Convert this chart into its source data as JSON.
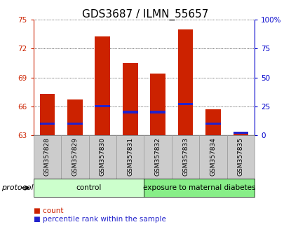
{
  "title": "GDS3687 / ILMN_55657",
  "samples": [
    "GSM357828",
    "GSM357829",
    "GSM357830",
    "GSM357831",
    "GSM357832",
    "GSM357833",
    "GSM357834",
    "GSM357835"
  ],
  "count_values": [
    67.3,
    66.7,
    73.3,
    70.5,
    69.4,
    74.0,
    65.7,
    63.3
  ],
  "percentile_values": [
    10.0,
    10.0,
    25.0,
    20.0,
    20.0,
    27.0,
    10.0,
    2.0
  ],
  "ymin": 63,
  "ymax": 75,
  "yticks_left": [
    63,
    66,
    69,
    72,
    75
  ],
  "yticks_right": [
    0,
    25,
    50,
    75,
    100
  ],
  "yright_labels": [
    "0",
    "25",
    "50",
    "75",
    "100%"
  ],
  "bar_color": "#cc2200",
  "percentile_color": "#2222cc",
  "bar_width": 0.55,
  "grid_color": "#000000",
  "protocol_groups": [
    {
      "label": "control",
      "start": 0,
      "end": 4,
      "color": "#ccffcc"
    },
    {
      "label": "exposure to maternal diabetes",
      "start": 4,
      "end": 8,
      "color": "#88ee88"
    }
  ],
  "protocol_label": "protocol",
  "legend_items": [
    {
      "label": "count",
      "color": "#cc2200"
    },
    {
      "label": "percentile rank within the sample",
      "color": "#2222cc"
    }
  ],
  "left_axis_color": "#cc2200",
  "right_axis_color": "#0000cc",
  "tick_label_fontsize": 7.5,
  "title_fontsize": 11,
  "xlabel_gray_bg": "#cccccc"
}
